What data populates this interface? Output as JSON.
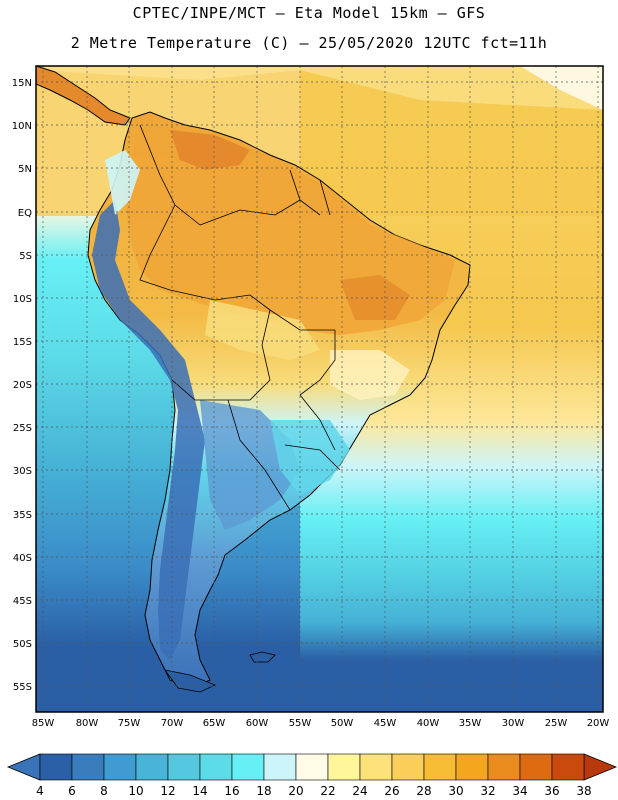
{
  "title_line1": "CPTEC/INPE/MCT –  Eta Model 15km – GFS",
  "title_line2": "2 Metre Temperature (C) – 25/05/2020 12UTC fct=11h",
  "latitude_ticks": [
    "15N",
    "10N",
    "5N",
    "EQ",
    "5S",
    "10S",
    "15S",
    "20S",
    "25S",
    "30S",
    "35S",
    "40S",
    "45S",
    "50S",
    "55S"
  ],
  "longitude_ticks": [
    "85W",
    "80W",
    "75W",
    "70W",
    "65W",
    "60W",
    "55W",
    "50W",
    "45W",
    "40W",
    "35W",
    "30W",
    "25W",
    "20W"
  ],
  "colorbar": {
    "labels": [
      "4",
      "6",
      "8",
      "10",
      "12",
      "14",
      "16",
      "18",
      "20",
      "22",
      "24",
      "26",
      "28",
      "30",
      "32",
      "34",
      "36",
      "38"
    ],
    "low_color": "#3a74b8",
    "high_color": "#b83a0c",
    "colors": [
      "#2b5fa6",
      "#3a7dbd",
      "#3f9bd0",
      "#4ab3d8",
      "#55c7df",
      "#5cdbe8",
      "#66f0f5",
      "#cdf5f9",
      "#fffbe6",
      "#fff59a",
      "#fde27b",
      "#f9cf5a",
      "#f5bc34",
      "#f3a71f",
      "#ea8b1d",
      "#de6a12",
      "#c94a0c"
    ]
  },
  "ocean": {
    "warm_gold": "#f5c84e",
    "pale_yellow": "#fde79a",
    "cream": "#fff8e0",
    "light_cyan": "#cdf5f9",
    "cyan": "#66f0f5",
    "mid_cyan": "#55d3e4",
    "teal": "#46b2d6",
    "blue": "#3a8bc8",
    "deep_blue": "#2a5fa5"
  },
  "land": {
    "hot_orange": "#e58a2c",
    "orange": "#f0a637",
    "amber": "#f3bb45",
    "yellow": "#f8dc7a",
    "pale": "#fff2c0",
    "andes_blue": "#3a6fb6",
    "patagonia": "#5d9ad3",
    "pampas_cyan": "#62d6ea"
  }
}
